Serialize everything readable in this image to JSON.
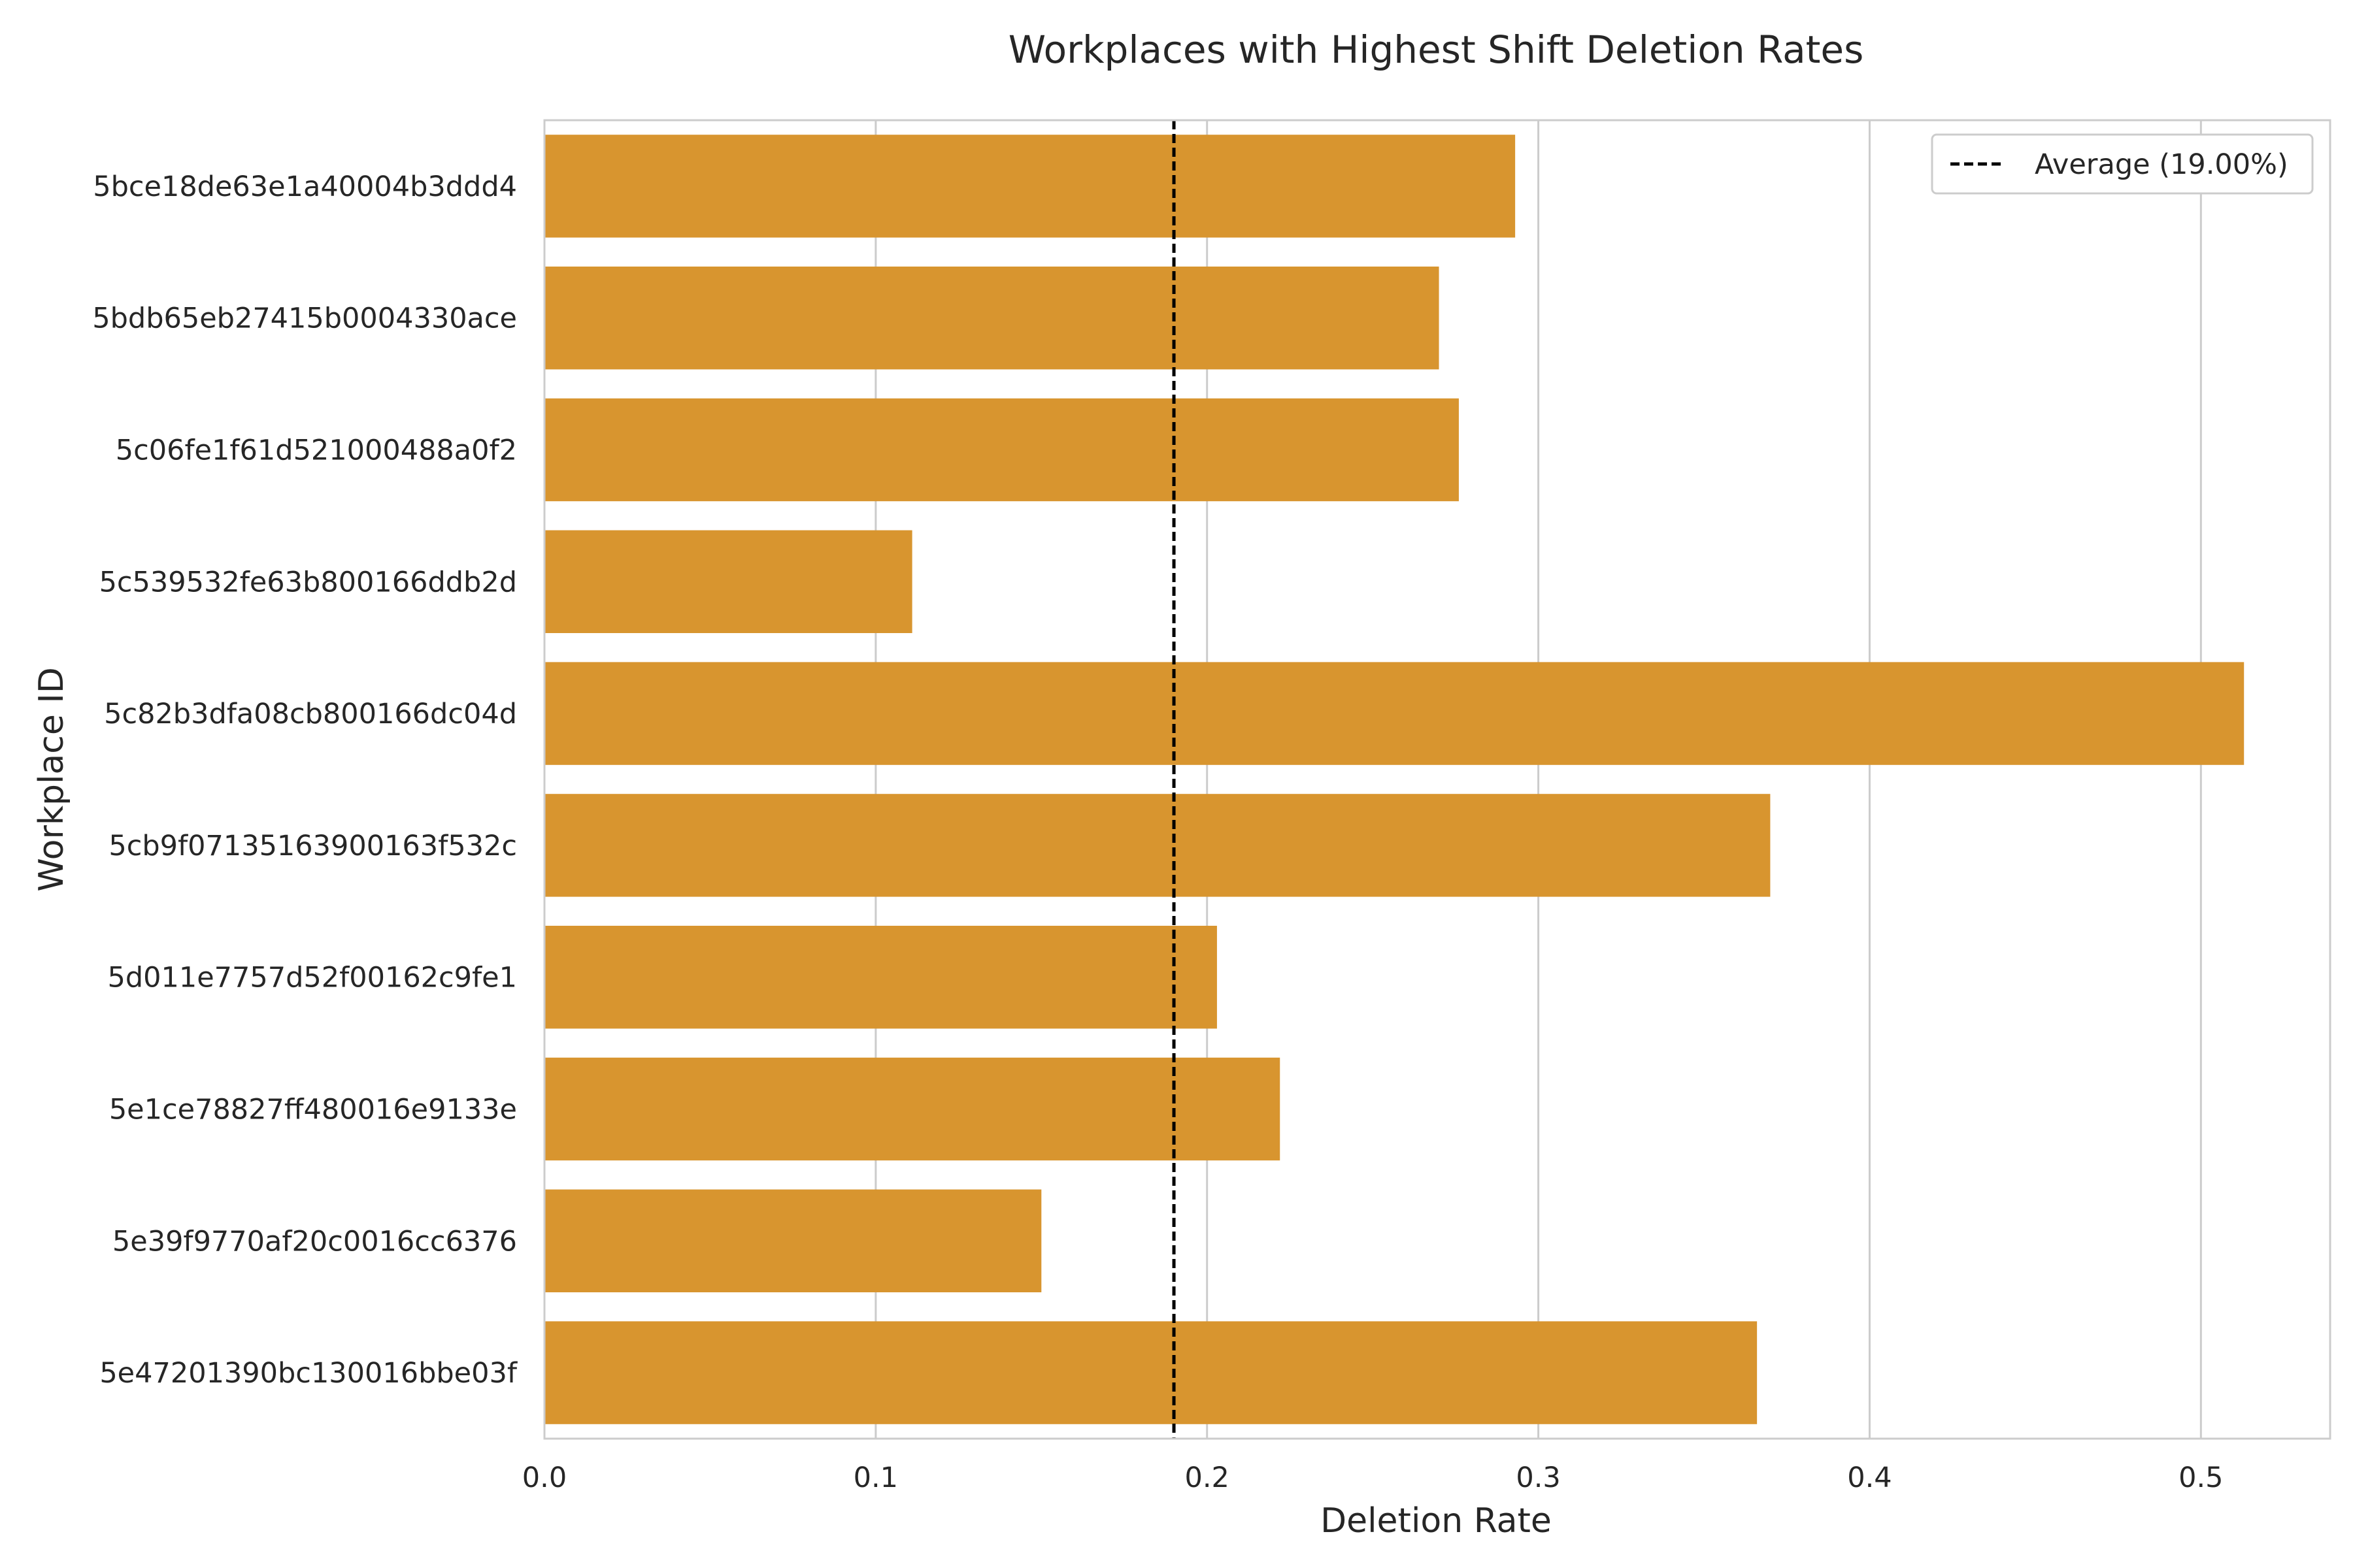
{
  "chart_data": {
    "type": "bar",
    "orientation": "horizontal",
    "title": "Workplaces with Highest Shift Deletion Rates",
    "xlabel": "Deletion Rate",
    "ylabel": "Workplace ID",
    "categories": [
      "5bce18de63e1a40004b3ddd4",
      "5bdb65eb27415b0004330ace",
      "5c06fe1f61d521000488a0f2",
      "5c539532fe63b800166ddb2d",
      "5c82b3dfa08cb800166dc04d",
      "5cb9f07135163900163f532c",
      "5d011e7757d52f00162c9fe1",
      "5e1ce78827ff480016e9133e",
      "5e39f9770af20c0016cc6376",
      "5e47201390bc130016bbe03f"
    ],
    "values": [
      0.293,
      0.27,
      0.276,
      0.111,
      0.513,
      0.37,
      0.203,
      0.222,
      0.15,
      0.366
    ],
    "xlim": [
      0,
      0.539
    ],
    "xticks": [
      0.0,
      0.1,
      0.2,
      0.3,
      0.4,
      0.5
    ],
    "xtick_labels": [
      "0.0",
      "0.1",
      "0.2",
      "0.3",
      "0.4",
      "0.5"
    ],
    "reference_line": {
      "value": 0.19,
      "label": "Average (19.00%)",
      "style": "dashed",
      "color": "#000000"
    },
    "legend": {
      "position": "top-right",
      "entries": [
        "Average (19.00%)"
      ]
    },
    "grid": {
      "x": true,
      "y": false
    },
    "bar_color": "#d8952f",
    "grid_color": "#cccccc",
    "spine_color": "#cccccc"
  }
}
